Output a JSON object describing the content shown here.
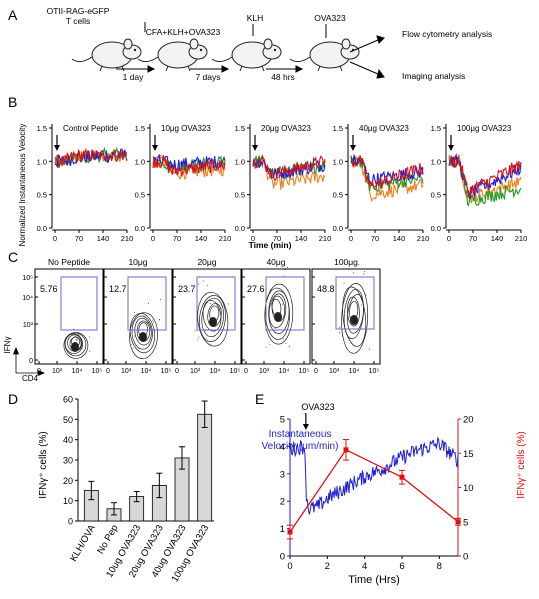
{
  "colors": {
    "blue": "#1f1fd6",
    "red": "#e01010",
    "green": "#1f9a1f",
    "orange": "#f08020",
    "gate": "#6a6ad0",
    "bar": "#d8d8d8"
  },
  "panel_a": {
    "letter": "A",
    "mouse_label": [
      "OTII-RAG-eGFP",
      "T cells"
    ],
    "step2_label": "CFA+KLH+OVA323",
    "step3_label": "KLH",
    "step4_label": "OVA323",
    "interval1": "1 day",
    "interval2": "7 days",
    "interval3": "48 hrs",
    "outcome1": "Flow cytometry analysis",
    "outcome2": "Imaging analysis"
  },
  "panel_b": {
    "letter": "B",
    "ylabel": "Normalized Instantaneous Velocity",
    "xlabel": "Time (min)",
    "yticks": [
      "1.5",
      "1.0",
      "0.5",
      "0.0"
    ],
    "xticks": [
      "0",
      "70",
      "140",
      "210"
    ],
    "titles": [
      "Control Peptide",
      "10μg OVA323",
      "20μg OVA323",
      "40μg OVA323",
      "100μg OVA323"
    ]
  },
  "panel_c": {
    "letter": "C",
    "titles": [
      "No Peptide",
      "10μg",
      "20μg",
      "40μg",
      "100μg"
    ],
    "percents": [
      "5.76",
      "12.7",
      "23.7",
      "27.6",
      "48.8"
    ],
    "yticks": [
      "10⁵",
      "10⁴",
      "10³",
      "0"
    ],
    "xticks": [
      "0",
      "10³",
      "10⁴",
      "10⁵"
    ],
    "ylabel": "IFNγ",
    "xlabel": "CD4"
  },
  "panel_d": {
    "letter": "D",
    "ylabel": "IFNγ⁺ cells (%)",
    "yticks": [
      "60",
      "50",
      "40",
      "30",
      "20",
      "10",
      "0"
    ]
  },
  "panel_e": {
    "letter": "E",
    "annotation": "OVA323",
    "ylabel_left": [
      "Instantaneous",
      "Velocity (μm/min)"
    ],
    "ylabel_right": "IFNγ⁺ cells (%)",
    "xlabel": "Time (Hrs)",
    "yticks_left": [
      "5",
      "4",
      "3",
      "2",
      "1",
      "0"
    ],
    "yticks_right": [
      "20",
      "15",
      "10",
      "5",
      "0"
    ],
    "xticks": [
      "0",
      "2",
      "4",
      "6",
      "8"
    ]
  },
  "chart_data": [
    {
      "type": "line",
      "panel": "B",
      "ylabel": "Normalized Instantaneous Velocity",
      "xlabel": "Time (min)",
      "xlim": [
        0,
        210
      ],
      "ylim": [
        0,
        1.5
      ],
      "subplots": [
        {
          "title": "Control Peptide",
          "series_levels": {
            "blue": [
              1.0,
              1.05,
              1.1
            ],
            "red": [
              1.0,
              1.08,
              1.1
            ],
            "green": [
              1.0,
              1.05,
              1.12
            ],
            "orange": [
              1.0,
              1.05,
              1.1
            ]
          }
        },
        {
          "title": "10μg OVA323",
          "series_levels": {
            "blue": [
              1.0,
              0.95,
              1.0
            ],
            "red": [
              1.0,
              0.85,
              0.95
            ],
            "green": [
              1.0,
              0.9,
              1.0
            ],
            "orange": [
              1.0,
              0.82,
              0.88
            ]
          }
        },
        {
          "title": "20μg OVA323",
          "series_levels": {
            "blue": [
              1.0,
              0.8,
              0.95
            ],
            "red": [
              1.0,
              0.8,
              1.0
            ],
            "green": [
              1.0,
              0.8,
              0.95
            ],
            "orange": [
              1.0,
              0.65,
              0.78
            ]
          }
        },
        {
          "title": "40μg OVA323",
          "series_levels": {
            "blue": [
              1.0,
              0.72,
              0.85
            ],
            "red": [
              1.0,
              0.62,
              0.9
            ],
            "green": [
              1.0,
              0.62,
              0.75
            ],
            "orange": [
              1.0,
              0.5,
              0.65
            ]
          }
        },
        {
          "title": "100μg OVA323",
          "series_levels": {
            "blue": [
              1.0,
              0.5,
              0.9
            ],
            "red": [
              1.0,
              0.55,
              0.95
            ],
            "green": [
              1.0,
              0.4,
              0.6
            ],
            "orange": [
              1.0,
              0.45,
              0.7
            ]
          }
        }
      ]
    },
    {
      "type": "bar",
      "panel": "D",
      "categories": [
        "KLH/OVA",
        "No Pep",
        "10ug OVA323",
        "20ug OVA323",
        "40ug OVA323",
        "100ug OVA323"
      ],
      "values": [
        15,
        6,
        12,
        17.5,
        31,
        52.5
      ],
      "errors": [
        4.5,
        3,
        2.5,
        6,
        5.5,
        6.5
      ],
      "ylabel": "IFNγ⁺ cells (%)",
      "ylim": [
        0,
        60
      ]
    },
    {
      "type": "line",
      "panel": "E",
      "xlabel": "Time (Hrs)",
      "xlim": [
        0,
        9
      ],
      "series": [
        {
          "name": "Instantaneous Velocity (μm/min)",
          "axis": "left",
          "ylim": [
            0,
            5
          ],
          "x": [
            0,
            0.8,
            0.85,
            1.0,
            1.5,
            2,
            3,
            4,
            5,
            6,
            7,
            8,
            9
          ],
          "values": [
            3.9,
            4.0,
            2.4,
            1.7,
            1.8,
            2.1,
            2.5,
            2.9,
            3.2,
            3.6,
            3.9,
            4.1,
            3.5
          ]
        },
        {
          "name": "IFNγ⁺ cells (%)",
          "axis": "right",
          "ylim": [
            0,
            20
          ],
          "x": [
            0,
            3,
            6,
            9
          ],
          "values": [
            3.5,
            15.5,
            11.5,
            5
          ],
          "errors": [
            1,
            1.5,
            1,
            0.5
          ]
        }
      ]
    }
  ]
}
